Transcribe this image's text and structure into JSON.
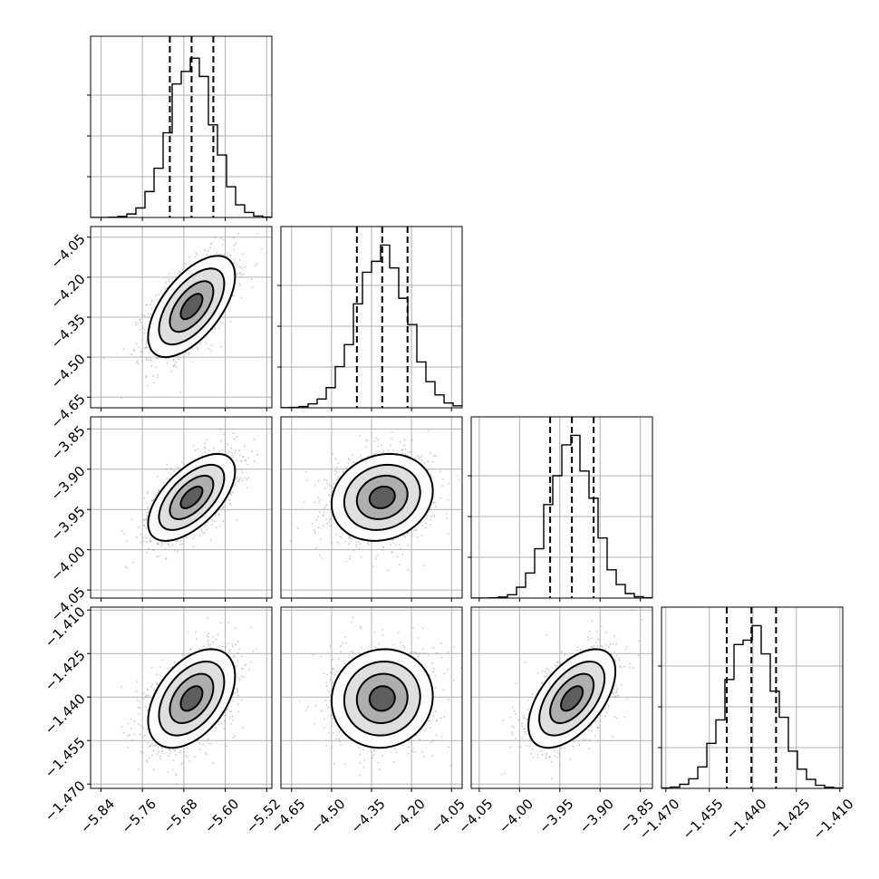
{
  "chart_data": {
    "type": "corner",
    "parameters": [
      {
        "name": "",
        "median": -5.665,
        "std": 0.042,
        "range": [
          -5.86,
          -5.51
        ],
        "ticks": [
          -5.84,
          -5.76,
          -5.68,
          -5.6,
          -5.52
        ],
        "tick_labels": [
          "−5.84",
          "−5.76",
          "−5.68",
          "−5.60",
          "−5.52"
        ],
        "quantiles": [
          -5.707,
          -5.665,
          -5.623
        ]
      },
      {
        "name": "",
        "median": -4.31,
        "std": 0.095,
        "range": [
          -4.69,
          -4.01
        ],
        "ticks": [
          -4.65,
          -4.5,
          -4.35,
          -4.2,
          -4.05
        ],
        "tick_labels": [
          "−4.65",
          "−4.50",
          "−4.35",
          "−4.20",
          "−4.05"
        ],
        "quantiles": [
          -4.405,
          -4.31,
          -4.215
        ]
      },
      {
        "name": "",
        "median": -3.935,
        "std": 0.027,
        "range": [
          -4.06,
          -3.835
        ],
        "ticks": [
          -4.05,
          -4.0,
          -3.95,
          -3.9,
          -3.85
        ],
        "tick_labels": [
          "−4.05",
          "−4.00",
          "−3.95",
          "−3.90",
          "−3.85"
        ],
        "quantiles": [
          -3.962,
          -3.935,
          -3.908
        ]
      },
      {
        "name": "",
        "median": -1.4405,
        "std": 0.0085,
        "range": [
          -1.4715,
          -1.409
        ],
        "ticks": [
          -1.47,
          -1.455,
          -1.44,
          -1.425,
          -1.41
        ],
        "tick_labels": [
          "−1.470",
          "−1.455",
          "−1.440",
          "−1.425",
          "−1.410"
        ],
        "quantiles": [
          -1.449,
          -1.4405,
          -1.432
        ]
      }
    ],
    "correlations": {
      "1-0": 0.6,
      "2-0": 0.6,
      "2-1": 0.15,
      "3-0": 0.45,
      "3-1": 0.05,
      "3-2": 0.55
    },
    "histogram_shape": "approximately gaussian, about 20 bins per panel",
    "contour_levels": [
      "0.5 sigma",
      "1.0 sigma",
      "1.5 sigma",
      "2.0 sigma"
    ],
    "grid": true,
    "legend": "none",
    "colors": {
      "points": "#9a9a9a",
      "contour": "#000000",
      "grid": "#b0b0b0",
      "density": "grayscale"
    }
  }
}
